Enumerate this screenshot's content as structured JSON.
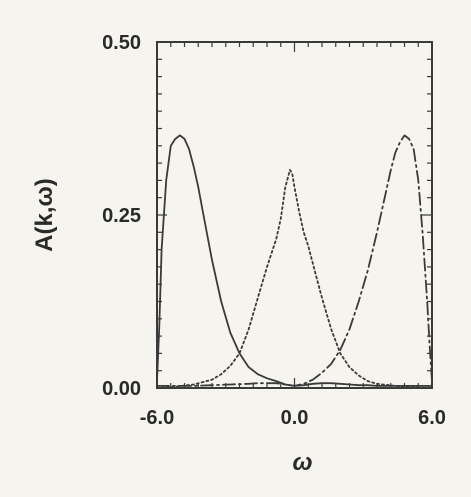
{
  "chart_data": {
    "type": "line",
    "title": "",
    "xlabel": "ω",
    "ylabel": "A(k,ω)",
    "xlim": [
      -6.0,
      6.0
    ],
    "ylim": [
      0.0,
      0.5
    ],
    "x_ticks": [
      -6.0,
      0.0,
      6.0
    ],
    "x_tick_labels": [
      "-6.0",
      "0.0",
      "6.0"
    ],
    "y_ticks": [
      0.0,
      0.25,
      0.5
    ],
    "y_tick_labels": [
      "0.00",
      "0.25",
      "0.50"
    ],
    "grid": false,
    "colors": {
      "line": "#3a3a3a",
      "background": "#f6f4ef"
    },
    "series": [
      {
        "style": "solid",
        "x": [
          -6.0,
          -5.9,
          -5.8,
          -5.6,
          -5.4,
          -5.2,
          -5.0,
          -4.8,
          -4.6,
          -4.4,
          -4.2,
          -4.0,
          -3.6,
          -3.2,
          -2.8,
          -2.4,
          -2.0,
          -1.6,
          -1.2,
          -0.8,
          -0.4,
          0.0,
          0.4,
          0.8,
          1.2,
          1.6,
          2.0,
          2.4,
          2.8,
          3.2,
          3.6,
          4.0,
          4.4,
          4.8,
          5.2,
          5.6,
          6.0
        ],
        "y": [
          0.01,
          0.09,
          0.2,
          0.3,
          0.35,
          0.36,
          0.365,
          0.36,
          0.345,
          0.32,
          0.29,
          0.255,
          0.185,
          0.125,
          0.08,
          0.05,
          0.03,
          0.02,
          0.014,
          0.01,
          0.005,
          0.003,
          0.004,
          0.006,
          0.007,
          0.007,
          0.006,
          0.005,
          0.004,
          0.004,
          0.003,
          0.003,
          0.003,
          0.003,
          0.003,
          0.003,
          0.003
        ]
      },
      {
        "style": "dotted",
        "x": [
          -6.0,
          -5.2,
          -4.4,
          -3.6,
          -3.2,
          -2.8,
          -2.4,
          -2.0,
          -1.6,
          -1.2,
          -0.8,
          -0.6,
          -0.4,
          -0.2,
          -0.1,
          0.0,
          0.2,
          0.4,
          0.6,
          0.8,
          1.2,
          1.6,
          2.0,
          2.4,
          2.8,
          3.2,
          3.6,
          4.4,
          5.2,
          6.0
        ],
        "y": [
          0.0,
          0.002,
          0.005,
          0.012,
          0.02,
          0.032,
          0.05,
          0.085,
          0.13,
          0.175,
          0.215,
          0.245,
          0.29,
          0.315,
          0.31,
          0.29,
          0.255,
          0.225,
          0.205,
          0.18,
          0.13,
          0.085,
          0.05,
          0.03,
          0.018,
          0.01,
          0.006,
          0.003,
          0.001,
          0.0
        ]
      },
      {
        "style": "dash-dot",
        "x": [
          -6.0,
          -5.2,
          -4.4,
          -3.6,
          -2.8,
          -2.0,
          -1.6,
          -1.2,
          -0.8,
          -0.4,
          0.0,
          0.4,
          0.8,
          1.2,
          1.6,
          2.0,
          2.4,
          2.8,
          3.2,
          3.6,
          4.0,
          4.2,
          4.4,
          4.6,
          4.8,
          5.0,
          5.2,
          5.4,
          5.6,
          5.8,
          5.9,
          6.0
        ],
        "y": [
          0.003,
          0.003,
          0.003,
          0.004,
          0.005,
          0.006,
          0.007,
          0.007,
          0.007,
          0.005,
          0.003,
          0.006,
          0.012,
          0.022,
          0.035,
          0.055,
          0.085,
          0.125,
          0.17,
          0.225,
          0.285,
          0.315,
          0.34,
          0.355,
          0.365,
          0.36,
          0.345,
          0.3,
          0.22,
          0.12,
          0.06,
          0.01
        ]
      }
    ]
  }
}
